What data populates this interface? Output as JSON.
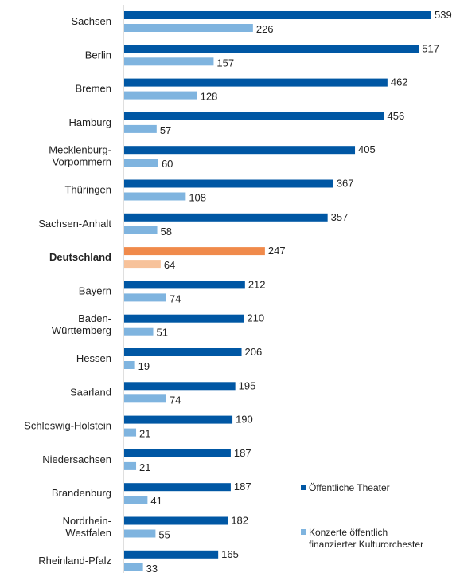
{
  "chart_data": {
    "type": "bar",
    "orientation": "horizontal",
    "highlight_category": "Deutschland",
    "categories": [
      [
        "Sachsen"
      ],
      [
        "Berlin"
      ],
      [
        "Bremen"
      ],
      [
        "Hamburg"
      ],
      [
        "Mecklenburg-",
        "Vorpommern"
      ],
      [
        "Thüringen"
      ],
      [
        "Sachsen-Anhalt"
      ],
      [
        "Deutschland"
      ],
      [
        "Bayern"
      ],
      [
        "Baden-",
        "Württemberg"
      ],
      [
        "Hessen"
      ],
      [
        "Saarland"
      ],
      [
        "Schleswig-Holstein"
      ],
      [
        "Niedersachsen"
      ],
      [
        "Brandenburg"
      ],
      [
        "Nordrhein-",
        "Westfalen"
      ],
      [
        "Rheinland-Pfalz"
      ]
    ],
    "series": [
      {
        "name": "Öffentliche Theater",
        "color": "#0057a4",
        "highlight_color": "#f08a4b",
        "values": [
          539,
          517,
          462,
          456,
          405,
          367,
          357,
          247,
          212,
          210,
          206,
          195,
          190,
          187,
          187,
          182,
          165
        ]
      },
      {
        "name": "Konzerte öffentlich finanzierter Kulturorchester",
        "legend_lines": [
          "Konzerte öffentlich",
          "finanzierter Kulturorchester"
        ],
        "color": "#7fb4df",
        "highlight_color": "#f7c29a",
        "values": [
          226,
          157,
          128,
          57,
          60,
          108,
          58,
          64,
          74,
          51,
          19,
          74,
          21,
          21,
          41,
          55,
          33
        ]
      }
    ],
    "xlim": [
      0,
      560
    ],
    "legend_position": "bottom-right",
    "grid": false
  }
}
